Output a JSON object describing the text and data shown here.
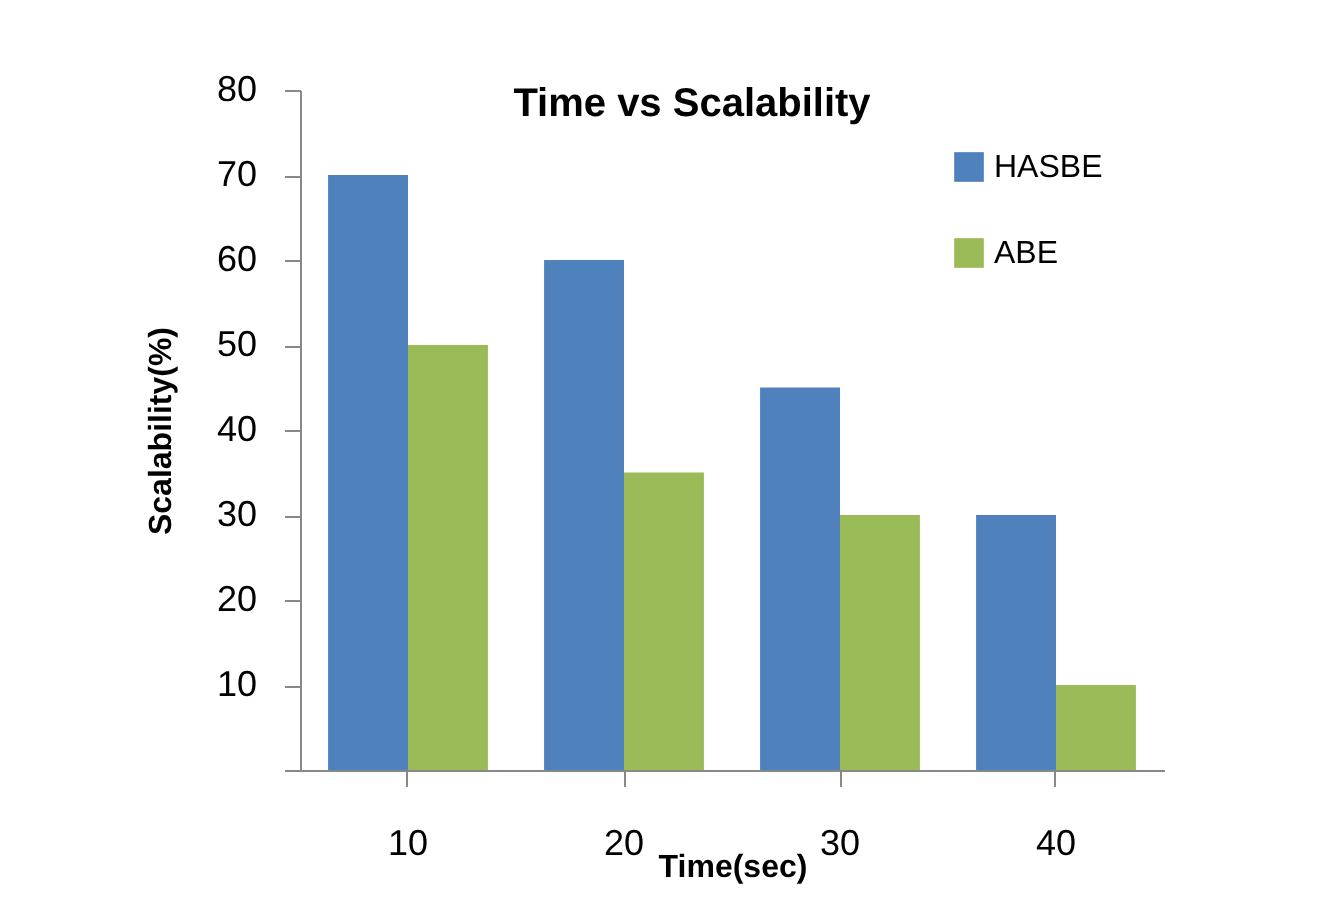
{
  "chart_data": {
    "type": "bar",
    "title": "Time vs Scalability",
    "xlabel": "Time(sec)",
    "ylabel": "Scalability(%)",
    "categories": [
      "10",
      "20",
      "30",
      "40"
    ],
    "series": [
      {
        "name": "HASBE",
        "color": "#4f81bd",
        "values": [
          70,
          60,
          45,
          30
        ]
      },
      {
        "name": "ABE",
        "color": "#9bbb59",
        "values": [
          50,
          35,
          30,
          10
        ]
      }
    ],
    "ylim": [
      0,
      80
    ],
    "yticks": [
      {
        "value": 0,
        "label": null
      },
      10,
      20,
      30,
      40,
      50,
      60,
      70,
      80
    ],
    "grid": false,
    "legend": "top right"
  }
}
